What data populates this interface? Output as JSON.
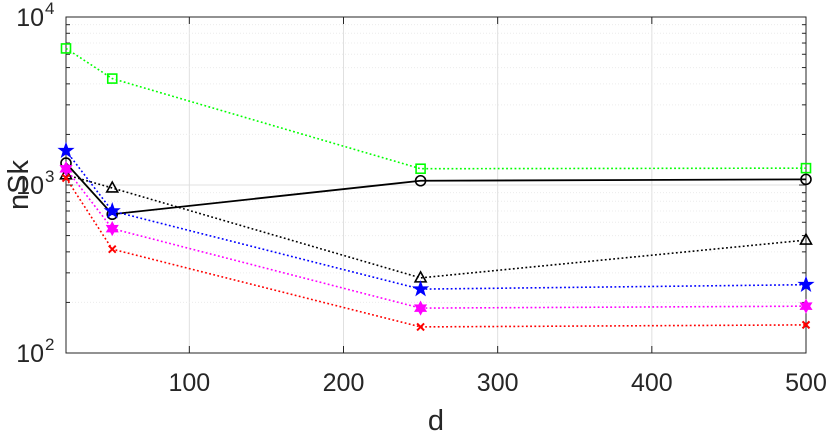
{
  "chart_data": {
    "type": "line",
    "title": "",
    "xlabel": "d",
    "ylabel": "nSk",
    "xlim": [
      20,
      500
    ],
    "ylim": [
      100,
      10000
    ],
    "yscale": "log",
    "grid": true,
    "grid_minor": true,
    "legend": "none",
    "x": [
      20,
      50,
      250,
      500
    ],
    "x_ticks": [
      100,
      200,
      300,
      400,
      500
    ],
    "x_tick_labels": [
      "100",
      "200",
      "300",
      "400",
      "500"
    ],
    "y_ticks": [
      100,
      1000,
      10000
    ],
    "y_tick_labels": [
      {
        "base": "10",
        "exp": "2"
      },
      {
        "base": "10",
        "exp": "3"
      },
      {
        "base": "10",
        "exp": "4"
      }
    ],
    "series": [
      {
        "color": "#00ff00",
        "marker": "square",
        "line": "dotted",
        "values": [
          6500,
          4300,
          1250,
          1260
        ]
      },
      {
        "color": "#000000",
        "marker": "circle",
        "line": "solid",
        "values": [
          1350,
          670,
          1060,
          1080
        ]
      },
      {
        "color": "#000000",
        "marker": "triangle",
        "line": "dotted",
        "values": [
          1150,
          960,
          280,
          470
        ]
      },
      {
        "color": "#0000ff",
        "marker": "star",
        "line": "dotted",
        "values": [
          1600,
          700,
          240,
          255
        ]
      },
      {
        "color": "#ff00ff",
        "marker": "hexagram",
        "line": "dotted",
        "values": [
          1250,
          550,
          185,
          190
        ]
      },
      {
        "color": "#ff0000",
        "marker": "x",
        "line": "dotted",
        "values": [
          1100,
          415,
          143,
          147
        ]
      }
    ]
  }
}
